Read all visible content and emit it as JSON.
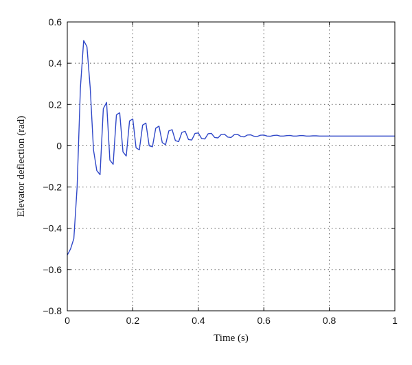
{
  "chart_data": {
    "type": "line",
    "title": "",
    "xlabel": "Time (s)",
    "ylabel": "Elevator deflection (rad)",
    "xlim": [
      0,
      1
    ],
    "ylim": [
      -0.8,
      0.6
    ],
    "xticks": [
      0,
      0.2,
      0.4,
      0.6,
      0.8,
      1
    ],
    "xtick_labels": [
      "0",
      "0.2",
      "0.4",
      "0.6",
      "0.8",
      "1"
    ],
    "yticks": [
      -0.8,
      -0.6,
      -0.4,
      -0.2,
      0,
      0.2,
      0.4,
      0.6
    ],
    "ytick_labels": [
      "−0.8",
      "−0.6",
      "−0.4",
      "−0.2",
      "0",
      "0.2",
      "0.4",
      "0.6"
    ],
    "grid": true,
    "legend": "none",
    "colors": {
      "series": "#3048c8",
      "axes": "#000000",
      "grid": "#555555"
    },
    "series": [
      {
        "x": [
          0,
          0.01,
          0.02,
          0.03,
          0.04,
          0.05,
          0.06,
          0.07,
          0.08,
          0.09,
          0.1,
          0.11,
          0.12,
          0.13,
          0.14,
          0.15,
          0.16,
          0.17,
          0.18,
          0.19,
          0.2,
          0.21,
          0.22,
          0.23,
          0.24,
          0.25,
          0.26,
          0.27,
          0.28,
          0.29,
          0.3,
          0.31,
          0.32,
          0.33,
          0.34,
          0.35,
          0.36,
          0.37,
          0.38,
          0.39,
          0.4,
          0.41,
          0.42,
          0.43,
          0.44,
          0.45,
          0.46,
          0.47,
          0.48,
          0.49,
          0.5,
          0.51,
          0.52,
          0.53,
          0.54,
          0.55,
          0.56,
          0.57,
          0.58,
          0.59,
          0.6,
          0.61,
          0.62,
          0.63,
          0.64,
          0.65,
          0.66,
          0.67,
          0.68,
          0.69,
          0.7,
          0.71,
          0.72,
          0.73,
          0.74,
          0.75,
          0.76,
          0.77,
          0.78,
          0.8,
          0.85,
          0.9,
          0.95,
          1.0
        ],
        "y": [
          -0.53,
          -0.5,
          -0.45,
          -0.2,
          0.28,
          0.51,
          0.48,
          0.28,
          -0.02,
          -0.12,
          -0.14,
          0.18,
          0.21,
          -0.07,
          -0.09,
          0.15,
          0.16,
          -0.03,
          -0.05,
          0.12,
          0.13,
          -0.01,
          -0.02,
          0.1,
          0.11,
          0.0,
          -0.005,
          0.085,
          0.095,
          0.015,
          0.005,
          0.072,
          0.078,
          0.025,
          0.02,
          0.065,
          0.07,
          0.03,
          0.028,
          0.06,
          0.062,
          0.035,
          0.033,
          0.058,
          0.06,
          0.04,
          0.038,
          0.055,
          0.056,
          0.042,
          0.04,
          0.054,
          0.055,
          0.045,
          0.043,
          0.052,
          0.053,
          0.046,
          0.045,
          0.051,
          0.052,
          0.047,
          0.046,
          0.05,
          0.051,
          0.047,
          0.047,
          0.049,
          0.05,
          0.047,
          0.047,
          0.049,
          0.049,
          0.047,
          0.047,
          0.048,
          0.048,
          0.047,
          0.047,
          0.047,
          0.047,
          0.047,
          0.047,
          0.047
        ]
      }
    ]
  }
}
